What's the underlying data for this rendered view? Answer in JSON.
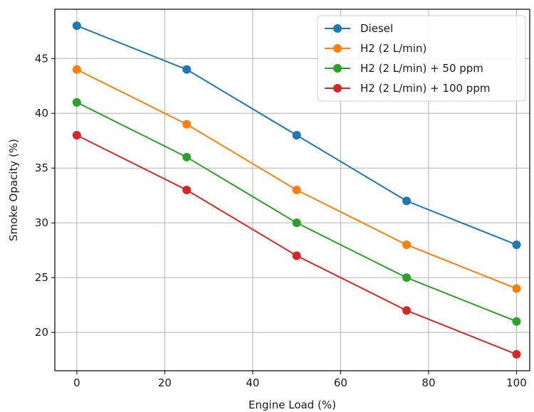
{
  "chart_data": {
    "type": "line",
    "xlabel": "Engine Load (%)",
    "ylabel": "Smoke Opacity (%)",
    "x": [
      0,
      25,
      50,
      75,
      100
    ],
    "xlim": [
      -5,
      103
    ],
    "ylim": [
      16.5,
      49.5
    ],
    "xticks": [
      0,
      20,
      40,
      60,
      80,
      100
    ],
    "yticks": [
      20,
      25,
      30,
      35,
      40,
      45
    ],
    "grid": true,
    "legend_position": "top-right",
    "series": [
      {
        "name": "Diesel",
        "color": "#1f77b4",
        "values": [
          48,
          44,
          38,
          32,
          28
        ]
      },
      {
        "name": "H2 (2 L/min)",
        "color": "#ff7f0e",
        "values": [
          44,
          39,
          33,
          28,
          24
        ]
      },
      {
        "name": "H2 (2 L/min) + 50 ppm",
        "color": "#2ca02c",
        "values": [
          41,
          36,
          30,
          25,
          21
        ]
      },
      {
        "name": "H2 (2 L/min) + 100 ppm",
        "color": "#d62728",
        "values": [
          38,
          33,
          27,
          22,
          18
        ]
      }
    ]
  }
}
